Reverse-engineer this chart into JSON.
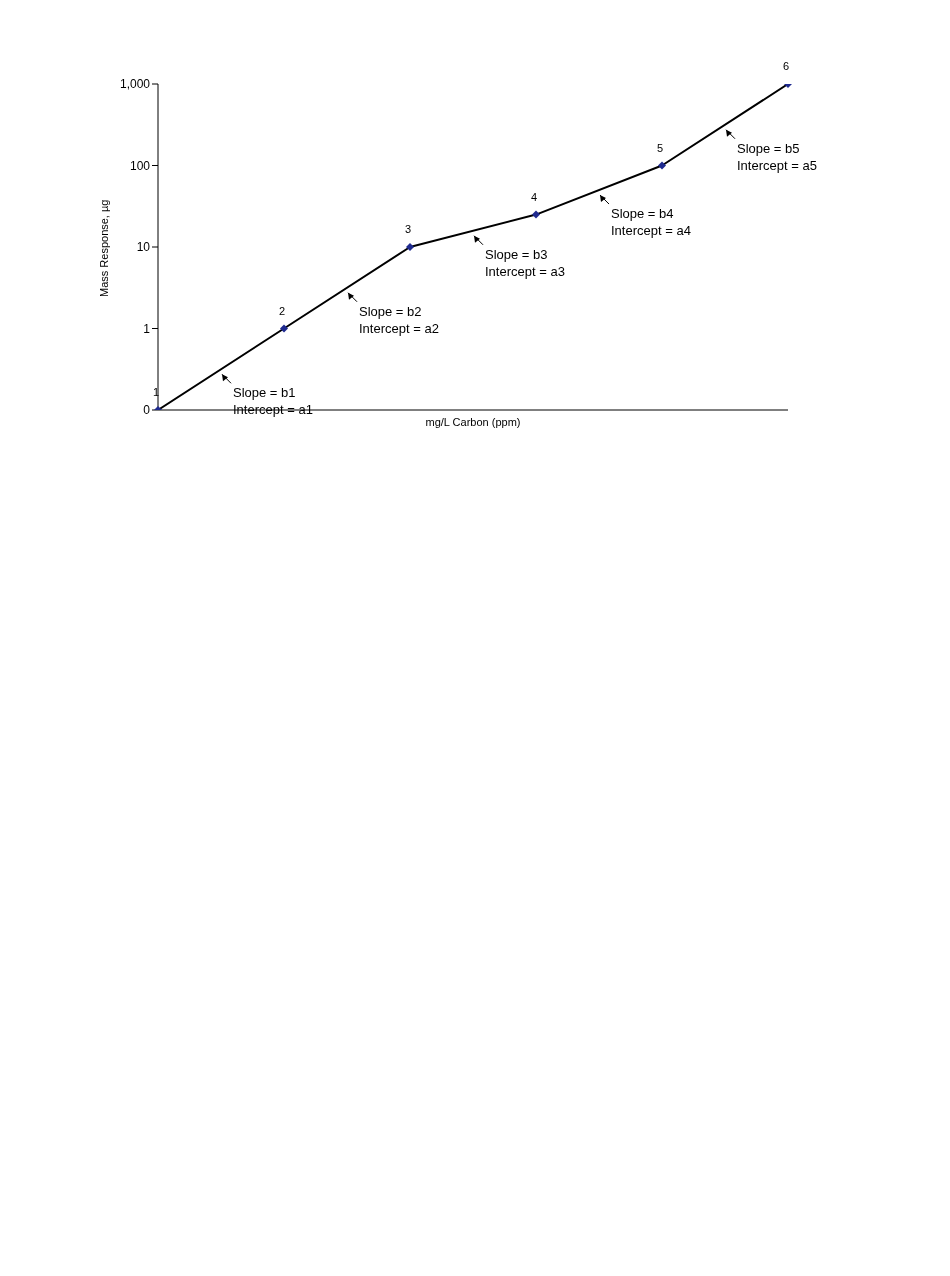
{
  "chart_data": {
    "type": "line",
    "xlabel": "mg/L Carbon (ppm)",
    "ylabel": "Mass Response, µg",
    "categories": [
      null,
      null,
      null,
      null,
      null,
      null
    ],
    "series": [
      {
        "color": "#000000",
        "marker": "none",
        "values": [
          0.1,
          1,
          10,
          25,
          100,
          1000
        ]
      },
      {
        "type": "scatter",
        "color": "#1f2a8f",
        "marker": "diamond",
        "values": [
          0.1,
          1,
          10,
          25,
          100,
          1000
        ]
      }
    ],
    "log": "y",
    "ylim": [
      0.1,
      1000
    ],
    "yticks": [
      {
        "value": 0.1,
        "label": "0"
      },
      {
        "value": 1,
        "label": "1"
      },
      {
        "value": 10,
        "label": "10"
      },
      {
        "value": 100,
        "label": "100"
      },
      {
        "value": 1000,
        "label": "1,000"
      }
    ],
    "grid": false,
    "legend": false,
    "annotations": [
      "1",
      "2",
      "3",
      "4",
      "5",
      "6",
      "Slope = b1\nIntercept = a1",
      "Slope = b2\nIntercept =  a2",
      "Slope = b3\nIntercept = a3",
      "Slope = b4\nIntercept = a4",
      "Slope = b5\nIntercept = a5"
    ]
  }
}
